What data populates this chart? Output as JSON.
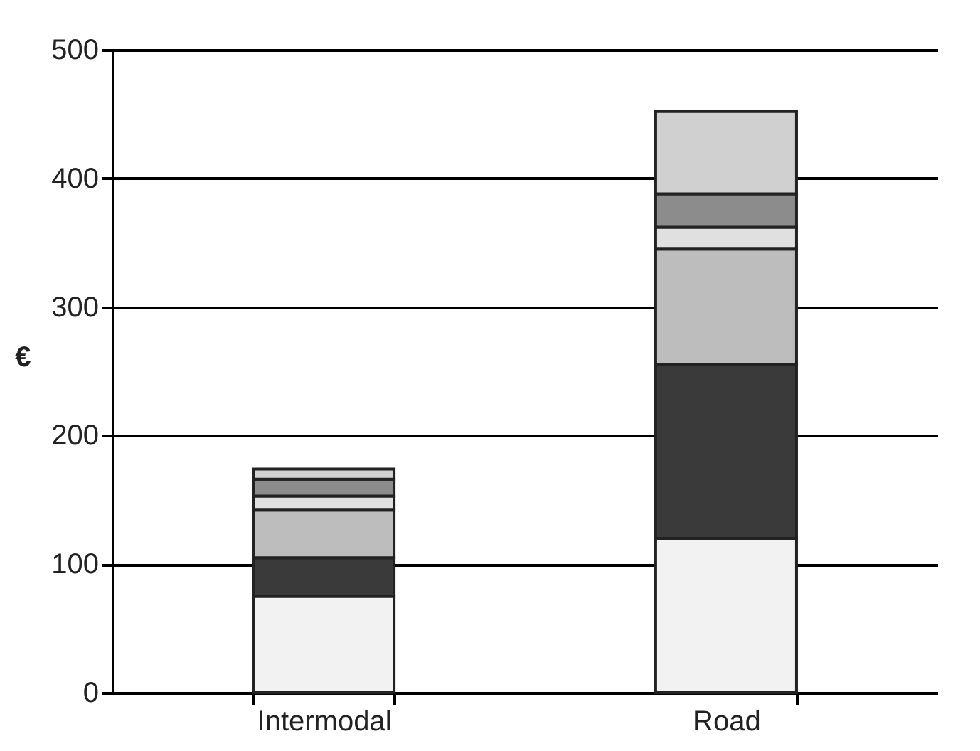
{
  "chart_data": {
    "type": "bar",
    "stacked": true,
    "ylabel": "€",
    "categories": [
      "Intermodal",
      "Road"
    ],
    "series": [
      {
        "color": "#f2f2f2",
        "values": [
          75,
          120
        ]
      },
      {
        "color": "#3a3a3a",
        "values": [
          30,
          135
        ]
      },
      {
        "color": "#bdbdbd",
        "values": [
          37,
          90
        ]
      },
      {
        "color": "#e0e0e0",
        "values": [
          11,
          17
        ]
      },
      {
        "color": "#8c8c8c",
        "values": [
          13,
          26
        ]
      },
      {
        "color": "#d0d0d0",
        "values": [
          8,
          64
        ]
      }
    ],
    "ylim": [
      0,
      500
    ],
    "yticks": [
      0,
      100,
      200,
      300,
      400,
      500
    ],
    "grid": "y",
    "legend": false
  }
}
